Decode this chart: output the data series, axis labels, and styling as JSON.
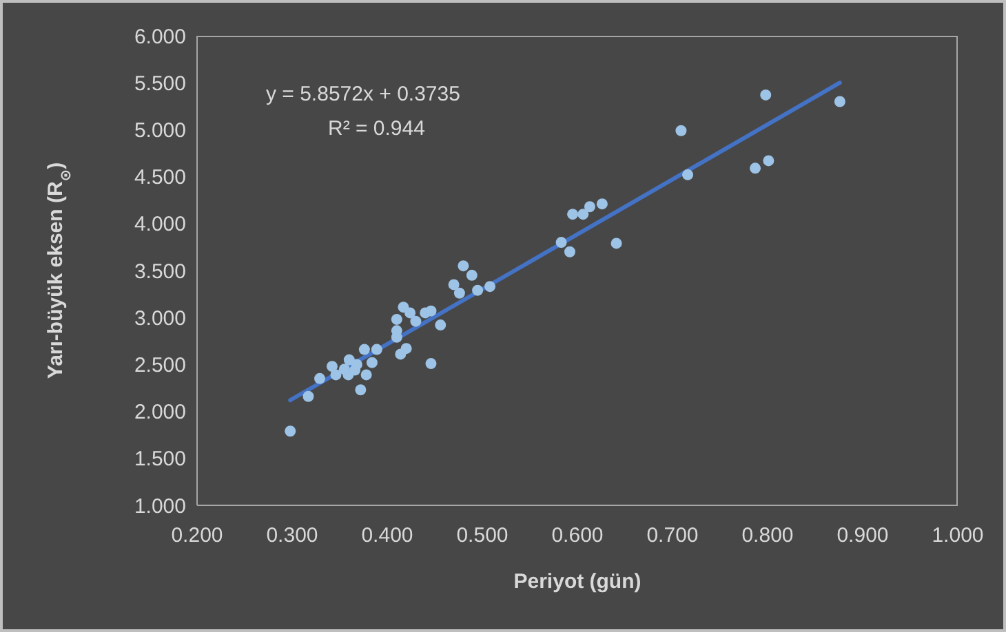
{
  "chart_data": {
    "type": "scatter",
    "xlabel": "Periyot (gün)",
    "ylabel": "Yarı-büyük eksen (R$_{⊙}$)",
    "annotations": [
      "y = 5.8572x + 0.3735",
      "R² = 0.944"
    ],
    "xlim": [
      0.2,
      1.0
    ],
    "xticks": [
      {
        "value": 0.2,
        "label": "0.200"
      },
      {
        "value": 0.3,
        "label": "0.300"
      },
      {
        "value": 0.4,
        "label": "0.400"
      },
      {
        "value": 0.5,
        "label": "0.500"
      },
      {
        "value": 0.6,
        "label": "0.600"
      },
      {
        "value": 0.7,
        "label": "0.700"
      },
      {
        "value": 0.8,
        "label": "0.800"
      },
      {
        "value": 0.9,
        "label": "0.900"
      },
      {
        "value": 1.0,
        "label": "1.000"
      }
    ],
    "ylim": [
      1.0,
      6.0
    ],
    "yticks": [
      {
        "value": 1.0,
        "label": "1.000"
      },
      {
        "value": 1.5,
        "label": "1.500"
      },
      {
        "value": 2.0,
        "label": "2.000"
      },
      {
        "value": 2.5,
        "label": "2.500"
      },
      {
        "value": 3.0,
        "label": "3.000"
      },
      {
        "value": 3.5,
        "label": "3.500"
      },
      {
        "value": 4.0,
        "label": "4.000"
      },
      {
        "value": 4.5,
        "label": "4.500"
      },
      {
        "value": 5.0,
        "label": "5.000"
      },
      {
        "value": 5.5,
        "label": "5.500"
      },
      {
        "value": 6.0,
        "label": "6.000"
      }
    ],
    "grid": false,
    "legend": false,
    "marker": "circle",
    "series": [
      {
        "color": "#9dc3e6",
        "x": [
          0.298,
          0.317,
          0.329,
          0.342,
          0.346,
          0.355,
          0.36,
          0.359,
          0.366,
          0.368,
          0.372,
          0.378,
          0.376,
          0.384,
          0.389,
          0.41,
          0.41,
          0.41,
          0.417,
          0.414,
          0.42,
          0.424,
          0.43,
          0.44,
          0.446,
          0.446,
          0.456,
          0.47,
          0.476,
          0.48,
          0.489,
          0.495,
          0.508,
          0.583,
          0.592,
          0.595,
          0.606,
          0.613,
          0.626,
          0.641,
          0.709,
          0.716,
          0.787,
          0.798,
          0.801,
          0.876
        ],
        "values": [
          1.79,
          2.16,
          2.35,
          2.48,
          2.39,
          2.45,
          2.55,
          2.39,
          2.44,
          2.5,
          2.23,
          2.39,
          2.66,
          2.52,
          2.66,
          2.86,
          2.98,
          2.79,
          3.11,
          2.61,
          2.67,
          3.05,
          2.96,
          3.05,
          3.07,
          2.51,
          2.92,
          3.35,
          3.26,
          3.55,
          3.45,
          3.29,
          3.33,
          3.8,
          3.7,
          4.1,
          4.1,
          4.18,
          4.21,
          3.79,
          4.99,
          4.52,
          4.59,
          5.37,
          4.67,
          5.3
        ]
      },
      {
        "type": "line",
        "marker": "none",
        "color": "#4472c4",
        "x": [
          0.298,
          0.876
        ],
        "values": [
          2.12,
          5.5
        ]
      }
    ]
  }
}
